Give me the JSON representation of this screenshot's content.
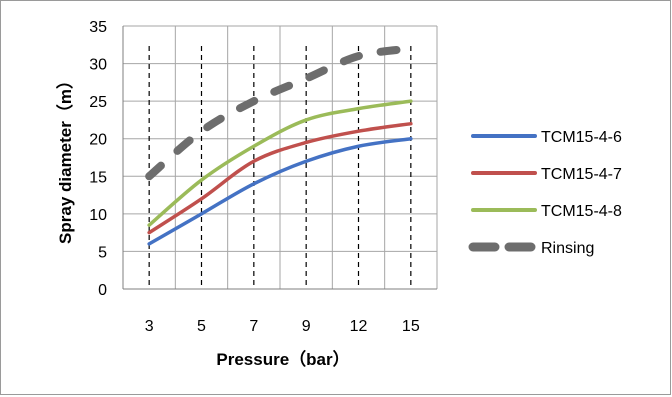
{
  "chart_data": {
    "type": "line",
    "categories": [
      "3",
      "5",
      "7",
      "9",
      "12",
      "15"
    ],
    "xlabel": "Pressure（bar）",
    "ylabel": "Spray diameter（m）",
    "ylim": [
      0,
      35
    ],
    "yticks": [
      0,
      5,
      10,
      15,
      20,
      25,
      30,
      35
    ],
    "grid": true,
    "legend_position": "right",
    "series": [
      {
        "name": "TCM15-4-6",
        "color": "#4472c4",
        "dash": "solid",
        "values": [
          6,
          10,
          14,
          17,
          19,
          20
        ]
      },
      {
        "name": "TCM15-4-7",
        "color": "#c0504d",
        "dash": "solid",
        "values": [
          7.5,
          12,
          17,
          19.5,
          21,
          22
        ]
      },
      {
        "name": "TCM15-4-8",
        "color": "#9bbb59",
        "dash": "solid",
        "values": [
          8.5,
          14.5,
          19,
          22.5,
          24,
          25
        ]
      },
      {
        "name": "Rinsing",
        "color": "#6d6d6d",
        "dash": "dashed",
        "values": [
          15,
          21,
          25,
          28,
          31,
          32
        ]
      }
    ]
  }
}
